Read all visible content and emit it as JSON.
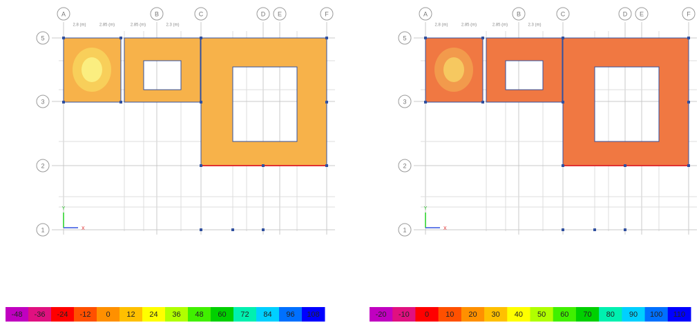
{
  "panels": [
    {
      "grid_columns": [
        "A",
        "B",
        "C",
        "D",
        "E",
        "F"
      ],
      "grid_rows": [
        "5",
        "3",
        "2",
        "1"
      ],
      "dimensions": [
        "2.8 (m)",
        "2.85 (m)",
        "2.85 (m)",
        "2.3 (m)"
      ],
      "axis_labels": [
        "Y",
        "X"
      ],
      "legend": [
        "-48",
        "-36",
        "-24",
        "-12",
        "0",
        "12",
        "24",
        "36",
        "48",
        "60",
        "72",
        "84",
        "96",
        "108"
      ]
    },
    {
      "grid_columns": [
        "A",
        "B",
        "C",
        "D",
        "E",
        "F"
      ],
      "grid_rows": [
        "5",
        "3",
        "2",
        "1"
      ],
      "dimensions": [
        "2.8 (m)",
        "2.85 (m)",
        "2.85 (m)",
        "2.3 (m)"
      ],
      "axis_labels": [
        "Y",
        "X"
      ],
      "legend": [
        "-20",
        "-10",
        "0",
        "10",
        "20",
        "30",
        "40",
        "50",
        "60",
        "70",
        "80",
        "90",
        "100",
        "110"
      ]
    }
  ]
}
